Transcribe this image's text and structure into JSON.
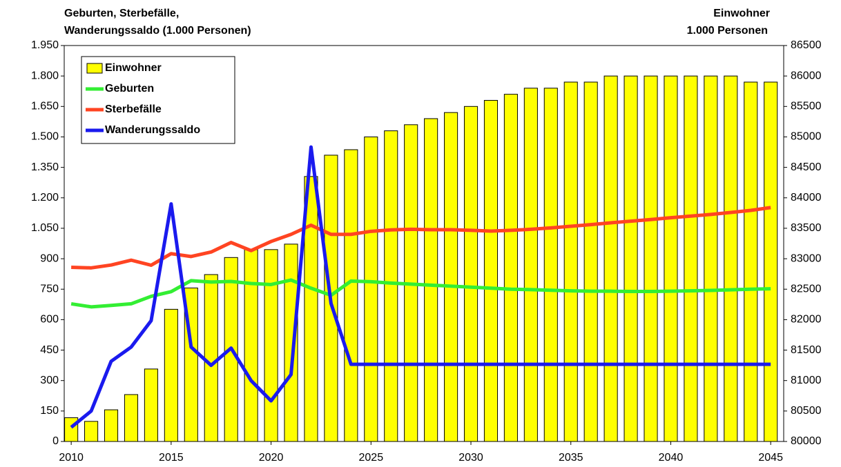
{
  "chart_data": {
    "type": "bar_line",
    "title_left": "Geburten, Sterbefälle,",
    "title_left2": "Wanderungssaldo (1.000 Personen)",
    "title_right": "Einwohner",
    "title_right2": "1.000 Personen",
    "x": [
      2010,
      2011,
      2012,
      2013,
      2014,
      2015,
      2016,
      2017,
      2018,
      2019,
      2020,
      2021,
      2022,
      2023,
      2024,
      2025,
      2026,
      2027,
      2028,
      2029,
      2030,
      2031,
      2032,
      2033,
      2034,
      2035,
      2036,
      2037,
      2038,
      2039,
      2040,
      2041,
      2042,
      2043,
      2044,
      2045
    ],
    "xlim": [
      2009.65,
      2045.65
    ],
    "xticks": [
      2010,
      2015,
      2020,
      2025,
      2030,
      2035,
      2040,
      2045
    ],
    "ylim": [
      0,
      1950
    ],
    "yticks": [
      0,
      150,
      300,
      450,
      600,
      750,
      900,
      {
        "value": 1050,
        "label": "1.050"
      },
      {
        "value": 1200,
        "label": "1.200"
      },
      {
        "value": 1350,
        "label": "1.350"
      },
      {
        "value": 1500,
        "label": "1.500"
      },
      {
        "value": 1650,
        "label": "1.650"
      },
      {
        "value": 1800,
        "label": "1.800"
      },
      {
        "value": 1950,
        "label": "1.950"
      }
    ],
    "y2lim": [
      80000,
      86500
    ],
    "y2ticks": [
      80000,
      80500,
      81000,
      81500,
      82000,
      82500,
      83000,
      83500,
      84000,
      84500,
      85000,
      85500,
      86000,
      86500
    ],
    "legend": "upper left",
    "series": [
      {
        "name": "Einwohner",
        "kind": "bar",
        "axis": "y2",
        "color": "#ffff00",
        "values": [
          80390,
          80330,
          80520,
          80770,
          81190,
          82170,
          82520,
          82740,
          83020,
          83150,
          83150,
          83240,
          84350,
          84700,
          84790,
          85000,
          85100,
          85200,
          85300,
          85400,
          85500,
          85600,
          85700,
          85800,
          85800,
          85900,
          85900,
          86000,
          86000,
          86000,
          86000,
          86000,
          86000,
          86000,
          85900,
          85900
        ]
      },
      {
        "name": "Geburten",
        "kind": "line",
        "color": "#33ee33",
        "values": [
          678,
          663,
          670,
          678,
          715,
          738,
          792,
          785,
          788,
          778,
          773,
          795,
          755,
          720,
          790,
          787,
          780,
          775,
          770,
          765,
          760,
          755,
          750,
          748,
          745,
          742,
          740,
          740,
          739,
          739,
          740,
          742,
          744,
          747,
          750,
          752
        ]
      },
      {
        "name": "Sterbefälle",
        "kind": "line",
        "color": "#ff4422",
        "values": [
          858,
          855,
          869,
          893,
          868,
          925,
          911,
          933,
          980,
          940,
          985,
          1020,
          1065,
          1020,
          1020,
          1035,
          1042,
          1045,
          1043,
          1043,
          1040,
          1036,
          1040,
          1045,
          1052,
          1060,
          1068,
          1077,
          1085,
          1093,
          1102,
          1110,
          1118,
          1128,
          1138,
          1152
        ]
      },
      {
        "name": "Wanderungssaldo",
        "kind": "line",
        "color": "#1a1aee",
        "values": [
          70,
          150,
          395,
          465,
          595,
          1170,
          465,
          375,
          460,
          300,
          200,
          330,
          1450,
          680,
          380,
          380,
          380,
          380,
          380,
          380,
          380,
          380,
          380,
          380,
          380,
          380,
          380,
          380,
          380,
          380,
          380,
          380,
          380,
          380,
          380,
          380
        ]
      }
    ]
  }
}
